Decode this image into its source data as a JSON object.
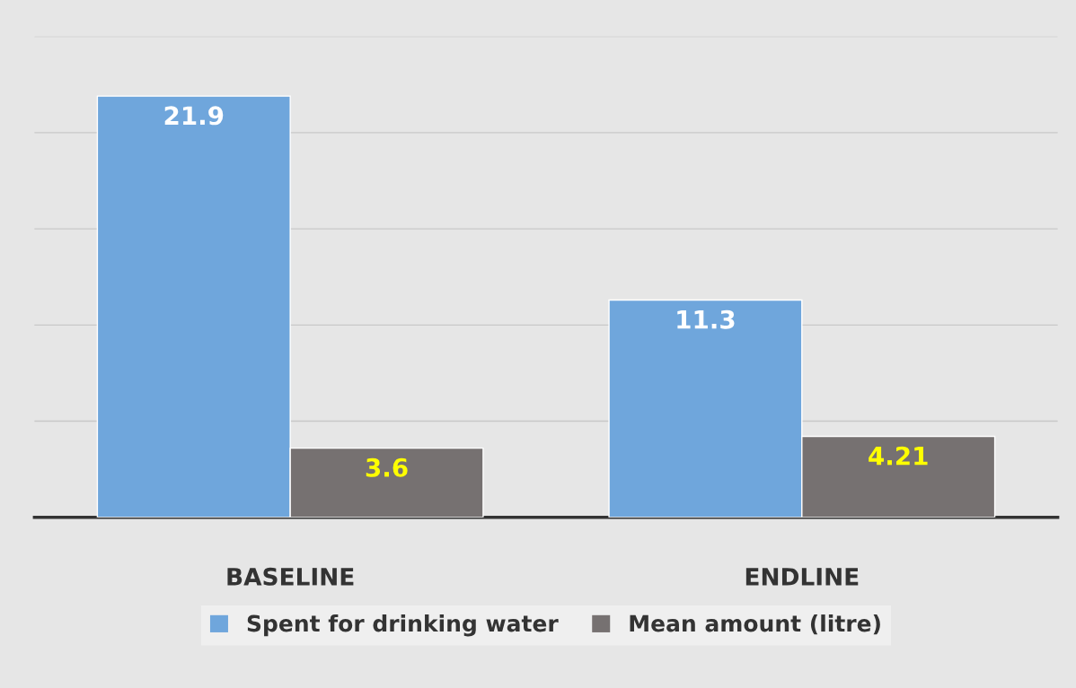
{
  "chart_data": {
    "type": "bar",
    "categories": [
      "BASELINE",
      "ENDLINE"
    ],
    "series": [
      {
        "name": "Spent for drinking water",
        "color": "#6fa6dc",
        "values": [
          21.9,
          11.3
        ]
      },
      {
        "name": "Mean amount (litre)",
        "color": "#767171",
        "values": [
          3.6,
          4.21
        ]
      }
    ],
    "ylim": [
      0,
      25
    ],
    "yticks": [
      {
        "value": 0,
        "label": null
      },
      {
        "value": 5,
        "label": null
      },
      {
        "value": 10,
        "label": null
      },
      {
        "value": 15,
        "label": null
      },
      {
        "value": 20,
        "label": null
      },
      {
        "value": 25,
        "label": null
      }
    ],
    "grid": "y",
    "legend": "bottom",
    "data_labels": true
  }
}
